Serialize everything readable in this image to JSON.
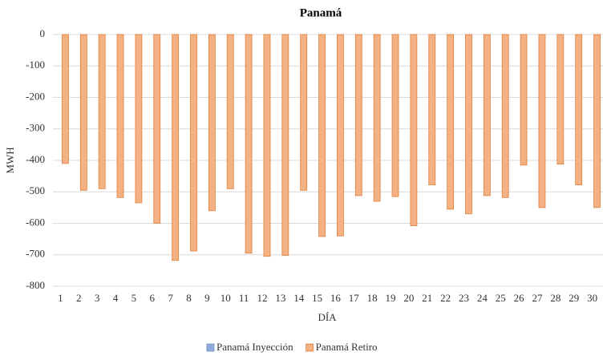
{
  "chart_data": {
    "type": "bar",
    "title": "Panamá",
    "x_label": "DÍA",
    "y_label": "MWH",
    "categories": [
      "1",
      "2",
      "3",
      "4",
      "5",
      "6",
      "7",
      "8",
      "9",
      "10",
      "11",
      "12",
      "13",
      "14",
      "15",
      "16",
      "17",
      "18",
      "19",
      "20",
      "21",
      "22",
      "23",
      "24",
      "25",
      "26",
      "27",
      "28",
      "29",
      "30"
    ],
    "series": [
      {
        "name": "Panamá Inyección",
        "color": "#8faadc",
        "values": [
          0,
          0,
          0,
          0,
          0,
          0,
          0,
          0,
          0,
          0,
          0,
          0,
          0,
          0,
          0,
          0,
          0,
          0,
          0,
          0,
          0,
          0,
          0,
          0,
          0,
          0,
          0,
          0,
          0,
          0
        ]
      },
      {
        "name": "Panamá Retiro",
        "color": "#f4b183",
        "values": [
          -410,
          -495,
          -490,
          -518,
          -535,
          -600,
          -718,
          -688,
          -560,
          -490,
          -695,
          -705,
          -702,
          -495,
          -642,
          -640,
          -512,
          -530,
          -515,
          -608,
          -478,
          -555,
          -570,
          -512,
          -518,
          -415,
          -550,
          -412,
          -478,
          -550
        ]
      }
    ],
    "ylim": [
      -800,
      0
    ],
    "yticks": [
      0,
      -100,
      -200,
      -300,
      -400,
      -500,
      -600,
      -700,
      -800
    ],
    "grid": true,
    "legend": "bottom"
  }
}
